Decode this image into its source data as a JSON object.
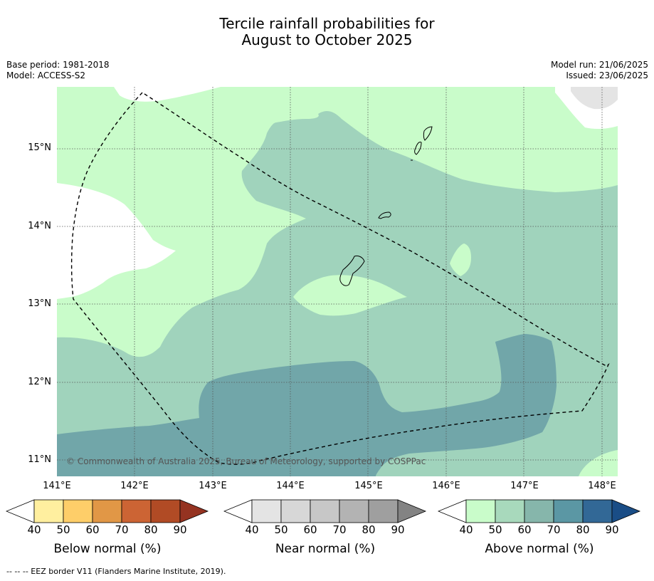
{
  "title": {
    "line1": "Tercile rainfall probabilities for",
    "line2": "August to October 2025"
  },
  "meta": {
    "base_period": "Base period: 1981-2018",
    "model": "Model: ACCESS-S2",
    "model_run": "Model run: 21/06/2025",
    "issued": "Issued: 23/06/2025"
  },
  "map": {
    "lat_labels": [
      "15°N",
      "14°N",
      "13°N",
      "12°N",
      "11°N"
    ],
    "lon_labels": [
      "141°E",
      "142°E",
      "143°E",
      "144°E",
      "145°E",
      "146°E",
      "147°E",
      "148°E"
    ],
    "copyright": "© Commonwealth of Australia 2025, Bureau of Meteorology, supported by COSPPac",
    "colors": {
      "above_40_50": "#c9fcca",
      "above_50_60": "#a0d3bc",
      "above_60_70": "#71a6a9",
      "near_high": "#e4e4e4",
      "land_outline": "#000000",
      "grid": "#555555"
    }
  },
  "colorbars": {
    "below": {
      "label": "Below normal (%)",
      "ticks": [
        "40",
        "50",
        "60",
        "70",
        "80",
        "90"
      ],
      "colors": [
        "#ffffff",
        "#ffef9f",
        "#fece69",
        "#e19746",
        "#cc6434",
        "#b14b25",
        "#953321"
      ]
    },
    "near": {
      "label": "Near normal (%)",
      "ticks": [
        "40",
        "50",
        "60",
        "70",
        "80",
        "90"
      ],
      "colors": [
        "#ffffff",
        "#e4e4e4",
        "#d7d7d7",
        "#c7c7c7",
        "#b3b3b3",
        "#9f9f9f",
        "#838383"
      ]
    },
    "above": {
      "label": "Above normal (%)",
      "ticks": [
        "40",
        "50",
        "60",
        "70",
        "80",
        "90"
      ],
      "colors": [
        "#ffffff",
        "#c9fcca",
        "#a8d9bc",
        "#86b6ab",
        "#5b97a4",
        "#326896",
        "#1a4d86"
      ]
    }
  },
  "footer": "--  --  -- EEZ border V11 (Flanders Marine Institute, 2019)."
}
